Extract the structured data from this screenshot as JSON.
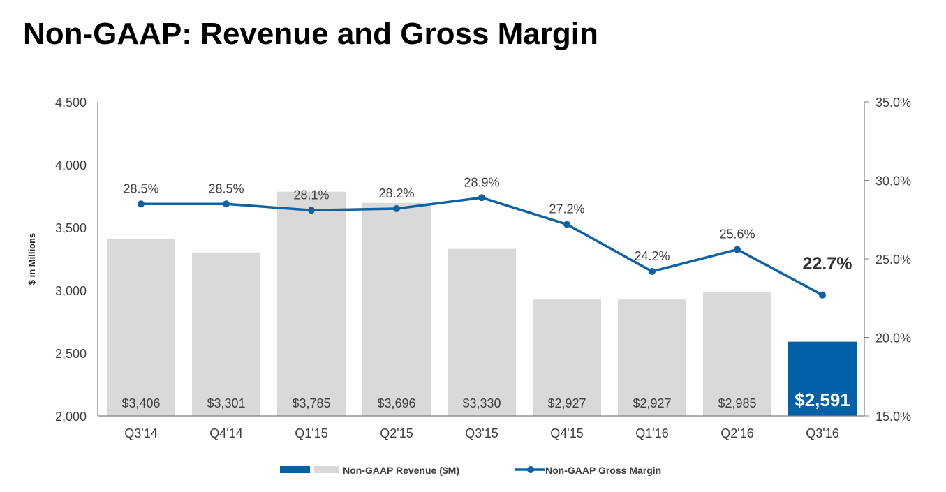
{
  "title": "Non-GAAP: Revenue and Gross Margin",
  "chart_data": {
    "type": "bar+line",
    "categories": [
      "Q3'14",
      "Q4'14",
      "Q1'15",
      "Q2'15",
      "Q3'15",
      "Q4'15",
      "Q1'16",
      "Q2'16",
      "Q3'16"
    ],
    "ylabel": "$ in Millions",
    "ylim": [
      2000,
      4500
    ],
    "yticks": [
      "2,000",
      "2,500",
      "3,000",
      "3,500",
      "4,000",
      "4,500"
    ],
    "y2lim": [
      15,
      35
    ],
    "y2ticks": [
      "15.0%",
      "20.0%",
      "25.0%",
      "30.0%",
      "35.0%"
    ],
    "grid": false,
    "legend_position": "bottom",
    "series": [
      {
        "name": "Non-GAAP Revenue ($M)",
        "type": "bar",
        "axis": "left",
        "values": [
          3406,
          3301,
          3785,
          3696,
          3330,
          2927,
          2927,
          2985,
          2591
        ],
        "labels": [
          "$3,406",
          "$3,301",
          "$3,785",
          "$3,696",
          "$3,330",
          "$2,927",
          "$2,927",
          "$2,985",
          "$2,591"
        ]
      },
      {
        "name": "Non-GAAP Gross Margin",
        "type": "line",
        "axis": "right",
        "values": [
          28.5,
          28.5,
          28.1,
          28.2,
          28.9,
          27.2,
          24.2,
          25.6,
          22.7
        ],
        "labels": [
          "28.5%",
          "28.5%",
          "28.1%",
          "28.2%",
          "28.9%",
          "27.2%",
          "24.2%",
          "25.6%",
          "22.7%"
        ]
      }
    ],
    "colors": {
      "bar": "#d9d9d9",
      "highlight_bar": "#0060a8",
      "line": "#0d62a4",
      "text": "#404040"
    }
  }
}
